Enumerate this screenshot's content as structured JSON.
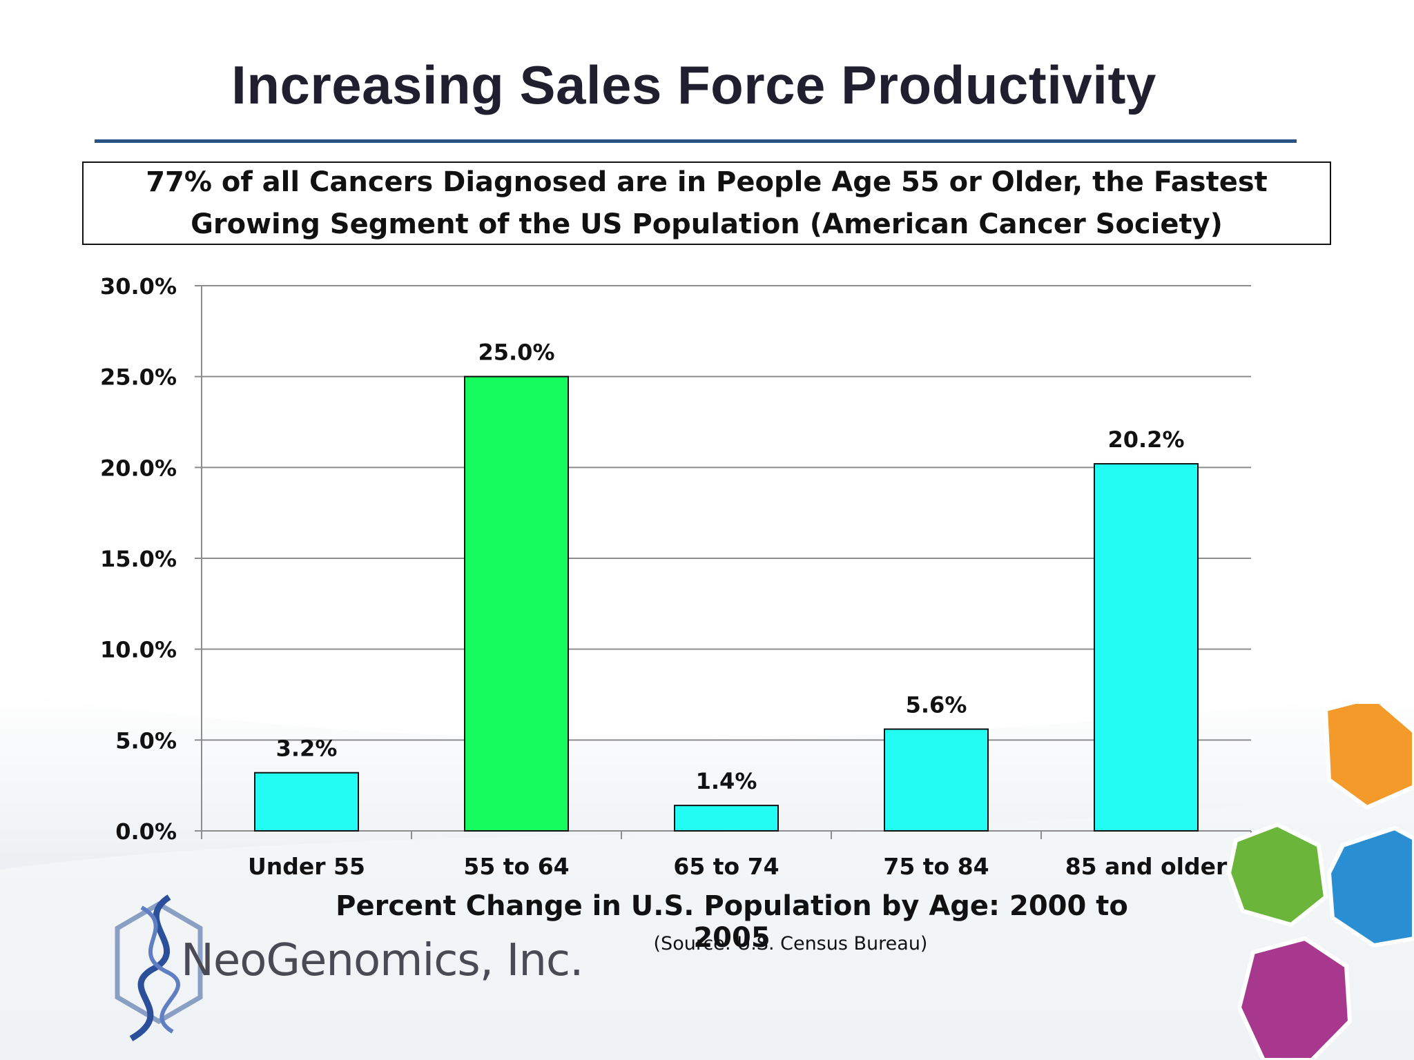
{
  "slide": {
    "title": "Increasing Sales Force Productivity",
    "callout": "77% of all Cancers Diagnosed are in People Age 55 or Older, the Fastest Growing Segment of the US Population (American Cancer Society)",
    "source": "(Source:  U.S. Census Bureau)",
    "logo_text": "NeoGenomics, Inc."
  },
  "chart_data": {
    "type": "bar",
    "categories": [
      "Under 55",
      "55 to 64",
      "65 to 74",
      "75 to 84",
      "85 and older"
    ],
    "values": [
      3.2,
      25.0,
      1.4,
      5.6,
      20.2
    ],
    "data_labels": [
      "3.2%",
      "25.0%",
      "1.4%",
      "5.6%",
      "20.2%"
    ],
    "bar_colors": [
      "#22fcf2",
      "#16fc5e",
      "#22fcf2",
      "#22fcf2",
      "#22fcf2"
    ],
    "ylim": [
      0,
      30
    ],
    "yticks": [
      0,
      5,
      10,
      15,
      20,
      25,
      30
    ],
    "ytick_labels": [
      "0.0%",
      "5.0%",
      "10.0%",
      "15.0%",
      "20.0%",
      "25.0%",
      "30.0%"
    ],
    "xlabel": "Percent Change in U.S. Population by Age:  2000 to 2005",
    "ylabel": "",
    "grid": true,
    "legend": "none"
  }
}
